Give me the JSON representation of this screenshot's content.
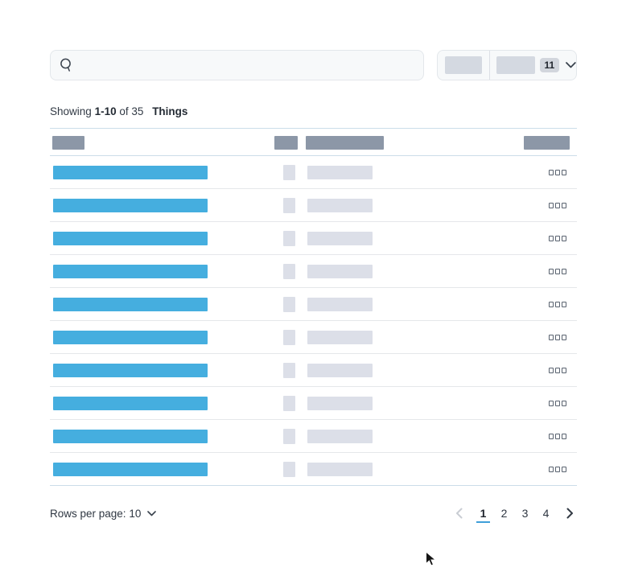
{
  "colors": {
    "accent_blue": "#45AEDF",
    "header_placeholder_gray": "#8C97A7",
    "light_placeholder_gray": "#DCDFE8",
    "table_border_blue": "#CBDDE9",
    "row_divider": "#E5E7EA",
    "control_background": "#F7F9FA",
    "control_border": "#E3E7EB",
    "active_page_underline": "#3F9FD9"
  },
  "search": {
    "value": "",
    "placeholder": ""
  },
  "filter_dropdown": {
    "badge": "11"
  },
  "summary": {
    "showing": "Showing",
    "range": "1-10",
    "of": "of",
    "total": "35",
    "entity": "Things"
  },
  "table": {
    "row_count": 10,
    "column_count": 4
  },
  "pagination": {
    "rows_per_page_label": "Rows per page:",
    "rows_per_page_value": "10",
    "pages": [
      "1",
      "2",
      "3",
      "4"
    ],
    "active_page": "1"
  }
}
